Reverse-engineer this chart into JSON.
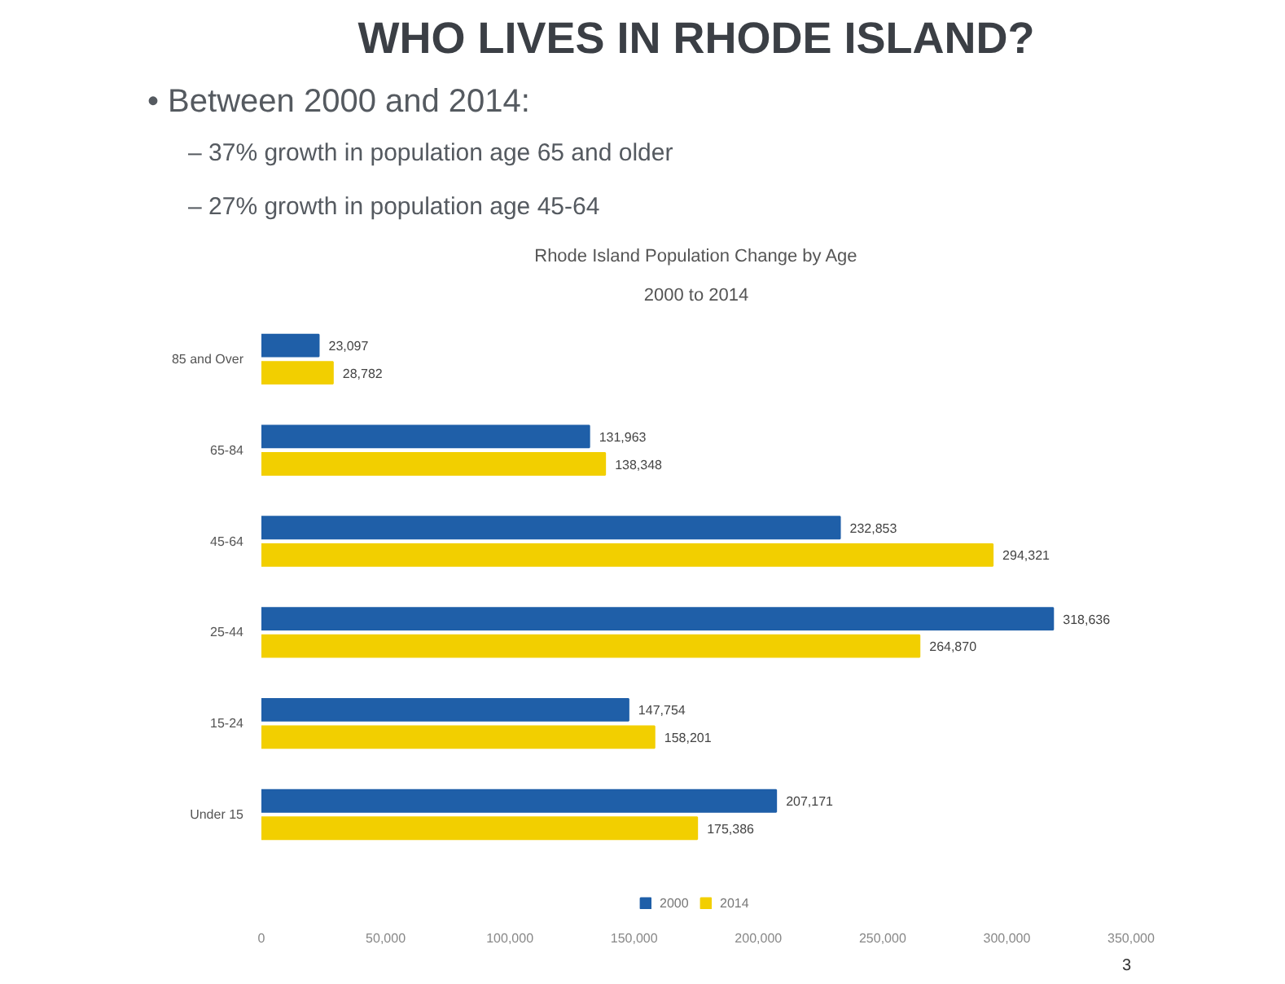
{
  "chart_data": {
    "type": "bar",
    "orientation": "horizontal",
    "title": "Rhode Island Population Change by Age",
    "subtitle": "2000 to 2014",
    "categories": [
      "85 and Over",
      "65-84",
      "45-64",
      "25-44",
      "15-24",
      "Under 15"
    ],
    "series": [
      {
        "name": "2000",
        "color": "#1f5fa8",
        "values": [
          23097,
          131963,
          232853,
          318636,
          147754,
          207171
        ],
        "value_labels": [
          "23,097",
          "131,963",
          "232,853",
          "318,636",
          "147,754",
          "207,171"
        ]
      },
      {
        "name": "2014",
        "color": "#f2cf00",
        "values": [
          28782,
          138348,
          294321,
          264870,
          158201,
          175386
        ],
        "value_labels": [
          "28,782",
          "138,348",
          "294,321",
          "264,870",
          "158,201",
          "175,386"
        ]
      }
    ],
    "xlim": [
      0,
      350000
    ],
    "xticks": [
      0,
      {
        "value": 50000,
        "label": "50,000"
      },
      {
        "value": 100000,
        "label": "100,000"
      },
      {
        "value": 150000,
        "label": "150,000"
      },
      {
        "value": 200000,
        "label": "200,000"
      },
      {
        "value": 250000,
        "label": "250,000"
      },
      {
        "value": 300000,
        "label": "300,000"
      },
      {
        "value": 350000,
        "label": "350,000"
      }
    ],
    "legend": "bottom",
    "annotations": [
      "WHO LIVES IN RHODE ISLAND?",
      "• Between 2000 and 2014:",
      "– 37% growth in population age 65 and older",
      "– 27% growth in population age 45-64",
      "3"
    ]
  }
}
